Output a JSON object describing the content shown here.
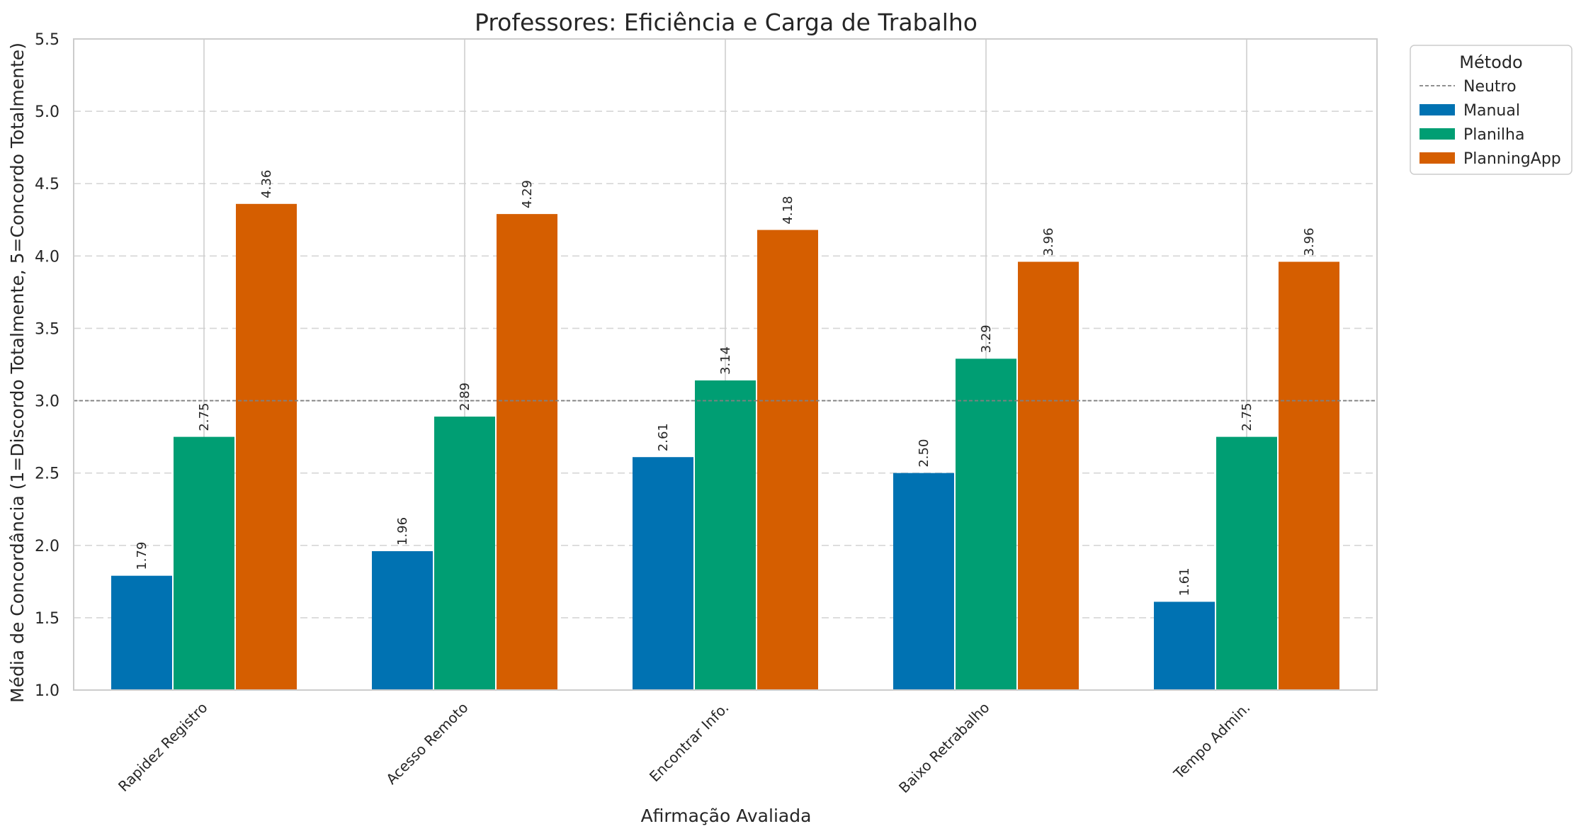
{
  "chart_data": {
    "type": "bar",
    "title": "Professores: Eficiência e Carga de Trabalho",
    "xlabel": "Afirmação Avaliada",
    "ylabel": "Média de Concordância (1=Discordo Totalmente, 5=Concordo Totalmente)",
    "ylim": [
      1.0,
      5.5
    ],
    "yticks": [
      "1.0",
      "1.5",
      "2.0",
      "2.5",
      "3.0",
      "3.5",
      "4.0",
      "4.5",
      "5.0",
      "5.5"
    ],
    "categories": [
      "Rapidez Registro",
      "Acesso Remoto",
      "Encontrar Info.",
      "Baixo Retrabalho",
      "Tempo Admin."
    ],
    "series": [
      {
        "name": "Manual",
        "color": "#0072b2",
        "values": [
          1.79,
          1.96,
          2.61,
          2.5,
          1.61
        ],
        "labels": [
          "1.79",
          "1.96",
          "2.61",
          "2.50",
          "1.61"
        ]
      },
      {
        "name": "Planilha",
        "color": "#009e73",
        "values": [
          2.75,
          2.89,
          3.14,
          3.29,
          2.75
        ],
        "labels": [
          "2.75",
          "2.89",
          "3.14",
          "3.29",
          "2.75"
        ]
      },
      {
        "name": "PlanningApp",
        "color": "#d55e00",
        "values": [
          4.36,
          4.29,
          4.18,
          3.96,
          3.96
        ],
        "labels": [
          "4.36",
          "4.29",
          "4.18",
          "3.96",
          "3.96"
        ]
      }
    ],
    "reference_line": {
      "name": "Neutro",
      "value": 3.0,
      "color": "#808080"
    },
    "legend": {
      "title": "Método",
      "placement": "outside-top-right"
    },
    "grid": {
      "y": true,
      "x": true
    }
  }
}
